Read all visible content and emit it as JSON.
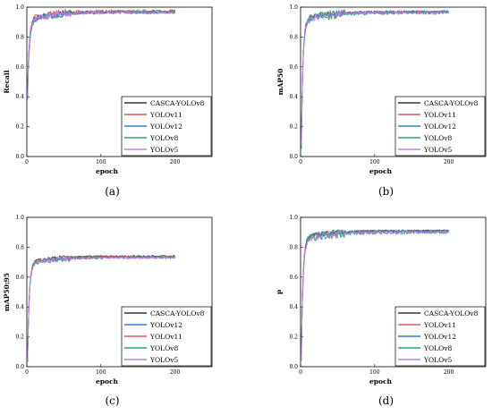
{
  "colors": {
    "CASCA-YOLOv8": "#333333",
    "YOLOv11": "#e8545a",
    "YOLOv12": "#2f7fd0",
    "YOLOv8": "#22a477",
    "YOLOv5": "#c77be6"
  },
  "chart_data": [
    {
      "type": "line",
      "caption": "(a)",
      "xlabel": "epoch",
      "ylabel": "Recall",
      "xlim": [
        0,
        250
      ],
      "ylim": [
        0,
        1.0
      ],
      "xticks": [
        0,
        100,
        200
      ],
      "yticks": [
        0.0,
        0.2,
        0.4,
        0.6,
        0.8,
        1.0
      ],
      "x_epochs": [
        1,
        200
      ],
      "legend_position": "bottom-right",
      "series": [
        {
          "name": "CASCA-YOLOv8",
          "start": 0.45,
          "plateau": 0.97,
          "noise": 0.012
        },
        {
          "name": "YOLOv11",
          "start": 0.4,
          "plateau": 0.975,
          "noise": 0.014
        },
        {
          "name": "YOLOv12",
          "start": 0.42,
          "plateau": 0.965,
          "noise": 0.012
        },
        {
          "name": "YOLOv8",
          "start": 0.38,
          "plateau": 0.965,
          "noise": 0.016
        },
        {
          "name": "YOLOv5",
          "start": 0.4,
          "plateau": 0.965,
          "noise": 0.014
        }
      ]
    },
    {
      "type": "line",
      "caption": "(b)",
      "xlabel": "epoch",
      "ylabel": "mAP50",
      "xlim": [
        0,
        250
      ],
      "ylim": [
        0,
        1.0
      ],
      "xticks": [
        0,
        100,
        200
      ],
      "yticks": [
        0.0,
        0.2,
        0.4,
        0.6,
        0.8,
        1.0
      ],
      "x_epochs": [
        1,
        200
      ],
      "legend_position": "bottom-right",
      "series": [
        {
          "name": "CASCA-YOLOv8",
          "start": 0.1,
          "plateau": 0.97,
          "noise": 0.01
        },
        {
          "name": "YOLOv11",
          "start": 0.08,
          "plateau": 0.97,
          "noise": 0.012
        },
        {
          "name": "YOLOv12",
          "start": 0.09,
          "plateau": 0.965,
          "noise": 0.012
        },
        {
          "name": "YOLOv8",
          "start": 0.05,
          "plateau": 0.965,
          "noise": 0.02
        },
        {
          "name": "YOLOv5",
          "start": 0.08,
          "plateau": 0.965,
          "noise": 0.014
        }
      ]
    },
    {
      "type": "line",
      "caption": "(c)",
      "xlabel": "epoch",
      "ylabel": "mAP50:95",
      "xlim": [
        0,
        250
      ],
      "ylim": [
        0,
        1.0
      ],
      "xticks": [
        0,
        100,
        200
      ],
      "yticks": [
        0.0,
        0.2,
        0.4,
        0.6,
        0.8,
        1.0
      ],
      "x_epochs": [
        1,
        200
      ],
      "legend_position": "bottom-right",
      "series": [
        {
          "name": "CASCA-YOLOv8",
          "start": 0.05,
          "plateau": 0.74,
          "noise": 0.008
        },
        {
          "name": "YOLOv12",
          "start": 0.04,
          "plateau": 0.735,
          "noise": 0.008
        },
        {
          "name": "YOLOv11",
          "start": 0.04,
          "plateau": 0.735,
          "noise": 0.009
        },
        {
          "name": "YOLOv8",
          "start": 0.03,
          "plateau": 0.73,
          "noise": 0.012
        },
        {
          "name": "YOLOv5",
          "start": 0.04,
          "plateau": 0.73,
          "noise": 0.01
        }
      ]
    },
    {
      "type": "line",
      "caption": "(d)",
      "xlabel": "epoch",
      "ylabel": "P",
      "xlim": [
        0,
        250
      ],
      "ylim": [
        0,
        1.0
      ],
      "xticks": [
        0,
        100,
        200
      ],
      "yticks": [
        0.0,
        0.2,
        0.4,
        0.6,
        0.8,
        1.0
      ],
      "x_epochs": [
        1,
        200
      ],
      "legend_position": "bottom-right",
      "series": [
        {
          "name": "CASCA-YOLOv8",
          "start": 0.05,
          "plateau": 0.91,
          "noise": 0.01
        },
        {
          "name": "YOLOv11",
          "start": 0.05,
          "plateau": 0.905,
          "noise": 0.012
        },
        {
          "name": "YOLOv12",
          "start": 0.05,
          "plateau": 0.91,
          "noise": 0.01
        },
        {
          "name": "YOLOv8",
          "start": 0.04,
          "plateau": 0.9,
          "noise": 0.018
        },
        {
          "name": "YOLOv5",
          "start": 0.05,
          "plateau": 0.9,
          "noise": 0.013
        }
      ]
    }
  ]
}
